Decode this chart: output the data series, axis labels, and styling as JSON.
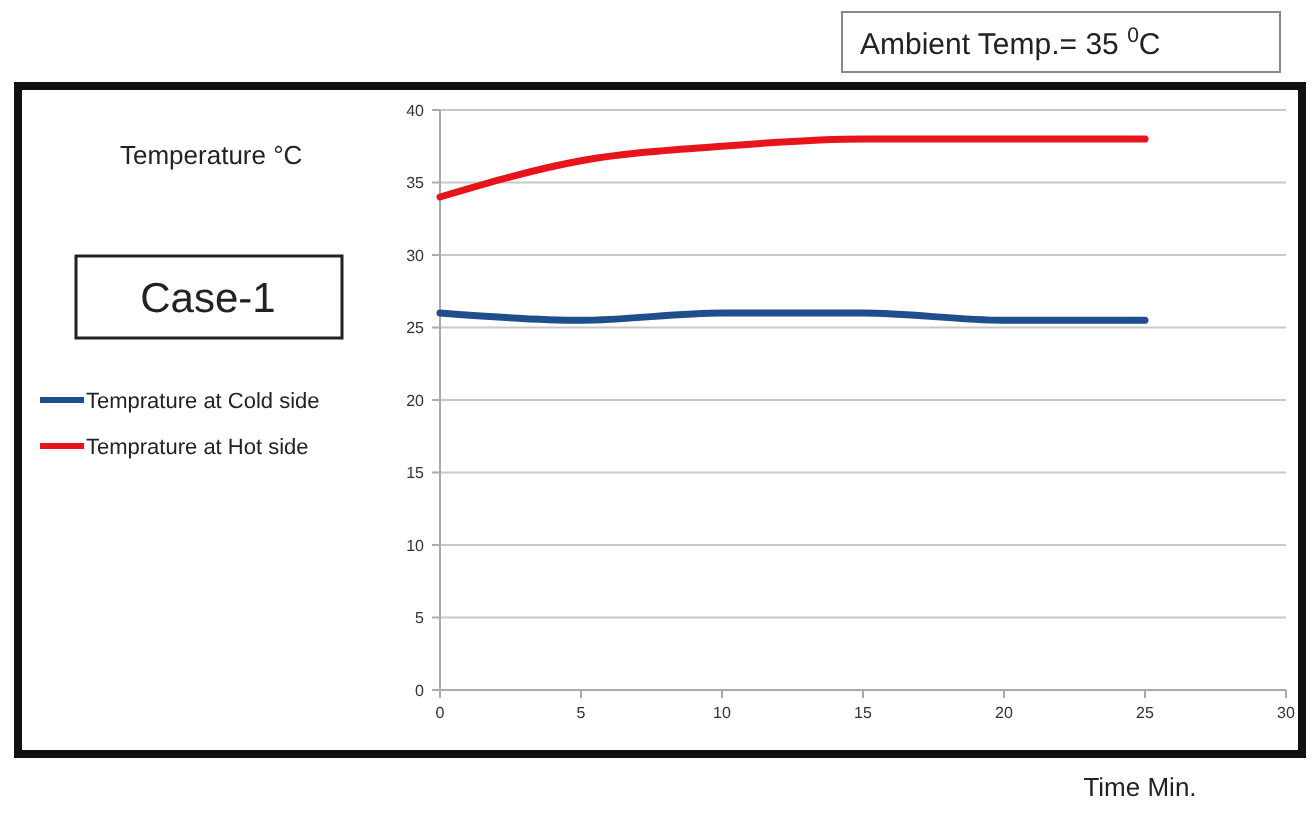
{
  "chart_data": {
    "type": "line",
    "title": "Case-1",
    "ylabel": "Temperature °C",
    "xlabel": "Time Min.",
    "annotations": [
      "Ambient Temp.= 35 $^{0}$C"
    ],
    "x": [
      0,
      5,
      10,
      15,
      20,
      25
    ],
    "series": [
      {
        "name": "Temprature at Cold side",
        "color": "#1f4e8c",
        "values": [
          26,
          25.5,
          26,
          26,
          25.5,
          25.5
        ]
      },
      {
        "name": "Temprature at Hot side",
        "color": "#e8141b",
        "values": [
          34,
          36.5,
          37.5,
          38,
          38,
          38
        ]
      }
    ],
    "xlim": [
      0,
      30
    ],
    "xticks": [
      0,
      5,
      10,
      15,
      20,
      25,
      30
    ],
    "ylim": [
      0,
      40
    ],
    "yticks": [
      0,
      5,
      10,
      15,
      20,
      25,
      30,
      35,
      40
    ],
    "grid": "y",
    "legend": "left",
    "marker": "none",
    "line_style": "solid"
  }
}
